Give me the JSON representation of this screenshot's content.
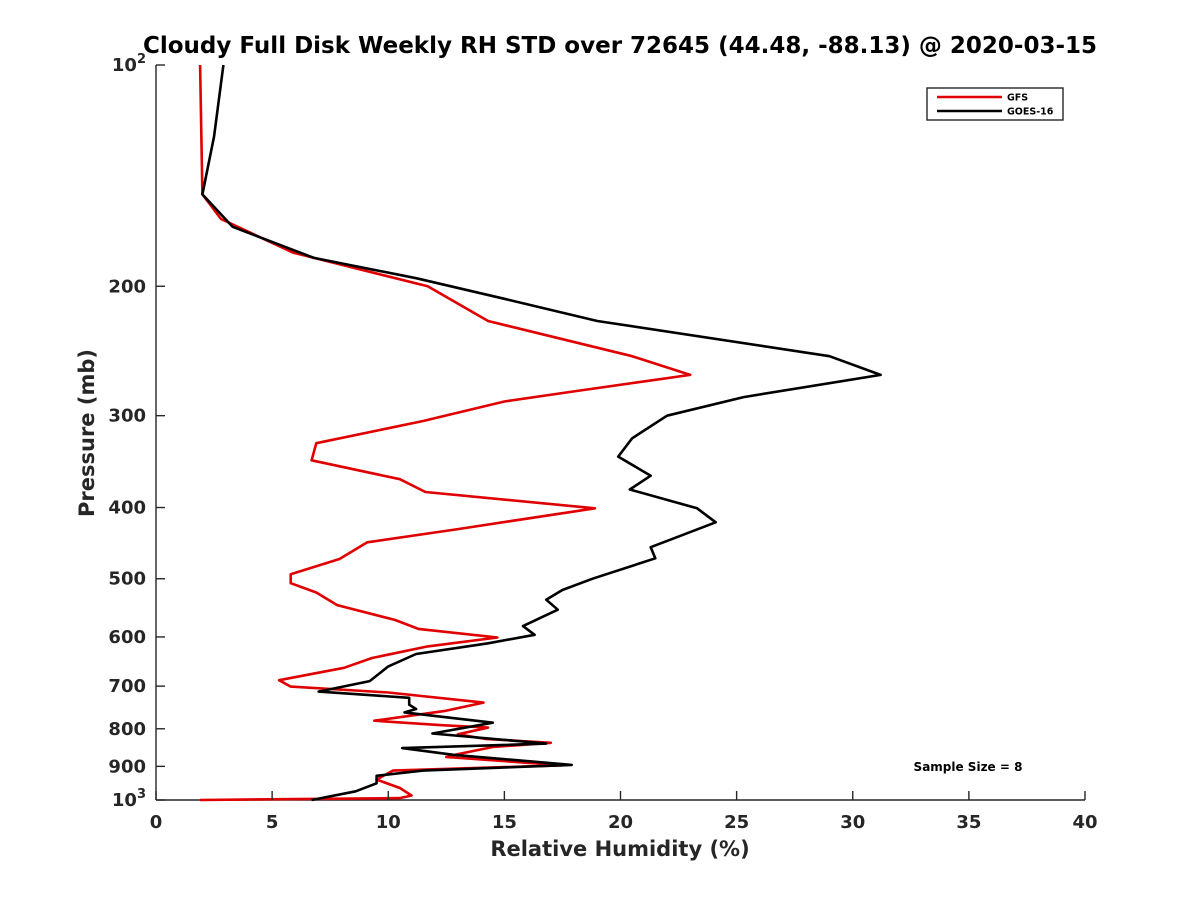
{
  "chart_data": {
    "type": "line",
    "title": "Cloudy Full Disk Weekly RH STD over 72645 (44.48, -88.13) @ 2020-03-15",
    "xlabel": "Relative Humidity (%)",
    "ylabel": "Pressure (mb)",
    "xlim": [
      0,
      40
    ],
    "ylim": [
      100,
      1000
    ],
    "y_scale": "log",
    "y_reversed": true,
    "x_ticks": [
      "0",
      "5",
      "10",
      "15",
      "20",
      "25",
      "30",
      "35",
      "40"
    ],
    "y_ticks": [
      {
        "value": 100,
        "base": "10",
        "exp": "2"
      },
      {
        "value": 200,
        "label": "200"
      },
      {
        "value": 300,
        "label": "300"
      },
      {
        "value": 400,
        "label": "400"
      },
      {
        "value": 500,
        "label": "500"
      },
      {
        "value": 600,
        "label": "600"
      },
      {
        "value": 700,
        "label": "700"
      },
      {
        "value": 800,
        "label": "800"
      },
      {
        "value": 900,
        "label": "900"
      },
      {
        "value": 1000,
        "base": "10",
        "exp": "3"
      }
    ],
    "grid": false,
    "legend_position": "top-right",
    "annotation": "Sample Size = 8",
    "series": [
      {
        "name": "GFS",
        "color": "#e00000",
        "points": [
          [
            1.9,
            100
          ],
          [
            2.0,
            150
          ],
          [
            2.8,
            162
          ],
          [
            5.9,
            180
          ],
          [
            11.7,
            200
          ],
          [
            14.3,
            223
          ],
          [
            20.5,
            249
          ],
          [
            23.0,
            264
          ],
          [
            18.0,
            278
          ],
          [
            15.0,
            287
          ],
          [
            11.5,
            305
          ],
          [
            6.9,
            327
          ],
          [
            6.7,
            345
          ],
          [
            10.5,
            366
          ],
          [
            11.6,
            381
          ],
          [
            18.9,
            401
          ],
          [
            13.0,
            428
          ],
          [
            9.1,
            446
          ],
          [
            7.9,
            470
          ],
          [
            5.8,
            493
          ],
          [
            5.8,
            507
          ],
          [
            6.9,
            522
          ],
          [
            7.8,
            543
          ],
          [
            10.3,
            569
          ],
          [
            11.3,
            585
          ],
          [
            14.7,
            601
          ],
          [
            11.7,
            618
          ],
          [
            9.3,
            641
          ],
          [
            8.1,
            661
          ],
          [
            5.3,
            687
          ],
          [
            5.8,
            701
          ],
          [
            10.0,
            714
          ],
          [
            14.1,
            737
          ],
          [
            12.4,
            757
          ],
          [
            9.4,
            780
          ],
          [
            12.3,
            791
          ],
          [
            14.3,
            797
          ],
          [
            13.0,
            814
          ],
          [
            14.2,
            826
          ],
          [
            17.0,
            836
          ],
          [
            14.5,
            847
          ],
          [
            13.0,
            866
          ],
          [
            12.5,
            874
          ],
          [
            17.5,
            897
          ],
          [
            10.2,
            912
          ],
          [
            9.5,
            938
          ],
          [
            10.5,
            963
          ],
          [
            11.0,
            986
          ],
          [
            10.5,
            994
          ],
          [
            1.9,
            1000
          ]
        ]
      },
      {
        "name": "GOES-16",
        "color": "#000000",
        "points": [
          [
            2.9,
            100
          ],
          [
            2.5,
            125
          ],
          [
            2.0,
            150
          ],
          [
            3.3,
            166
          ],
          [
            6.8,
            183
          ],
          [
            11.2,
            195
          ],
          [
            15.0,
            208
          ],
          [
            19.0,
            223
          ],
          [
            29.0,
            249
          ],
          [
            31.2,
            264
          ],
          [
            25.3,
            283
          ],
          [
            22.0,
            300
          ],
          [
            20.5,
            322
          ],
          [
            19.9,
            341
          ],
          [
            21.3,
            362
          ],
          [
            20.4,
            378
          ],
          [
            23.3,
            401
          ],
          [
            24.1,
            419
          ],
          [
            21.3,
            453
          ],
          [
            21.5,
            469
          ],
          [
            18.8,
            500
          ],
          [
            17.5,
            518
          ],
          [
            16.8,
            534
          ],
          [
            17.3,
            551
          ],
          [
            15.8,
            580
          ],
          [
            16.3,
            596
          ],
          [
            14.3,
            612
          ],
          [
            11.2,
            633
          ],
          [
            10.0,
            658
          ],
          [
            9.2,
            689
          ],
          [
            7.0,
            712
          ],
          [
            10.9,
            726
          ],
          [
            10.9,
            742
          ],
          [
            11.2,
            752
          ],
          [
            10.7,
            760
          ],
          [
            14.5,
            785
          ],
          [
            11.9,
            812
          ],
          [
            16.8,
            838
          ],
          [
            10.6,
            850
          ],
          [
            12.8,
            868
          ],
          [
            17.9,
            896
          ],
          [
            11.5,
            912
          ],
          [
            9.5,
            927
          ],
          [
            9.5,
            949
          ],
          [
            8.6,
            973
          ],
          [
            6.7,
            1000
          ]
        ]
      }
    ]
  }
}
